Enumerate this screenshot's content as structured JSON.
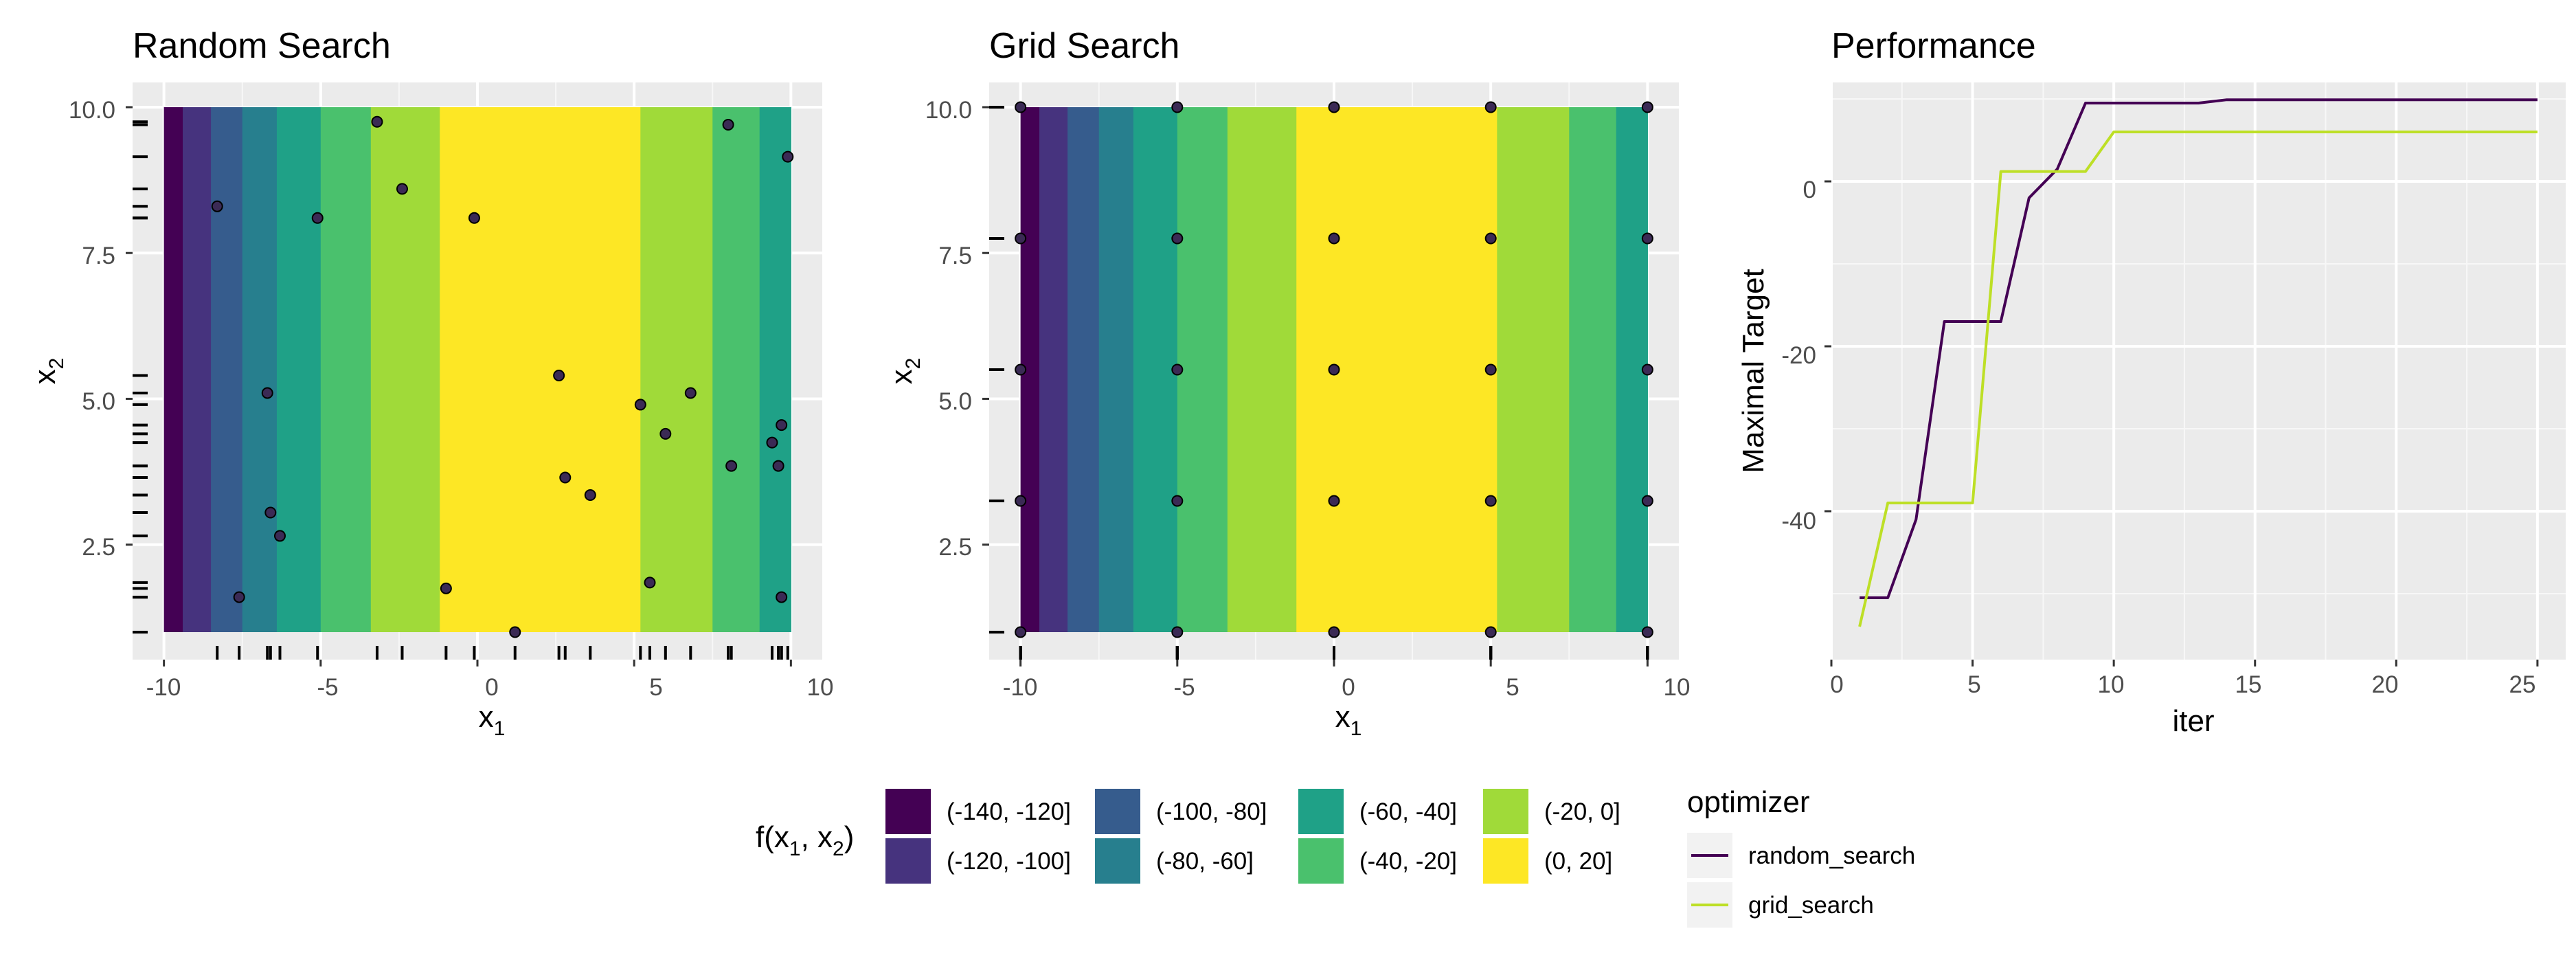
{
  "chart_data": [
    {
      "type": "heatmap",
      "title": "Random Search",
      "xlabel": "x1",
      "ylabel": "x2",
      "xlim": [
        -11,
        11
      ],
      "ylim": [
        1,
        10
      ],
      "x_ticks": [
        "-10",
        "-5",
        "0",
        "5",
        "10"
      ],
      "y_ticks": [
        "2.5",
        "5.0",
        "7.5",
        "10.0"
      ],
      "background_bands": [
        {
          "x_from": -10.0,
          "x_to": -9.4,
          "bin": "(-140, -120]"
        },
        {
          "x_from": -9.4,
          "x_to": -8.5,
          "bin": "(-120, -100]"
        },
        {
          "x_from": -8.5,
          "x_to": -7.5,
          "bin": "(-100, -80]"
        },
        {
          "x_from": -7.5,
          "x_to": -6.4,
          "bin": "(-80, -60]"
        },
        {
          "x_from": -6.4,
          "x_to": -5.0,
          "bin": "(-60, -40]"
        },
        {
          "x_from": -5.0,
          "x_to": -3.4,
          "bin": "(-40, -20]"
        },
        {
          "x_from": -3.4,
          "x_to": -1.2,
          "bin": "(-20, 0]"
        },
        {
          "x_from": -1.2,
          "x_to": 5.2,
          "bin": "(0, 20]"
        },
        {
          "x_from": 5.2,
          "x_to": 7.5,
          "bin": "(-20, 0]"
        },
        {
          "x_from": 7.5,
          "x_to": 9.0,
          "bin": "(-40, -20]"
        },
        {
          "x_from": 9.0,
          "x_to": 10.0,
          "bin": "(-60, -40]"
        }
      ],
      "points": {
        "x": [
          -8.3,
          -5.1,
          -3.2,
          -2.4,
          -0.1,
          8.0,
          9.9,
          2.6,
          5.2,
          6.8,
          6.0,
          9.4,
          9.7,
          8.1,
          9.6,
          2.8,
          3.6,
          5.5,
          9.7,
          -6.7,
          -6.6,
          -6.3,
          -7.6,
          -1.0,
          1.2
        ],
        "y": [
          8.3,
          8.1,
          9.75,
          8.6,
          8.1,
          9.7,
          9.15,
          5.4,
          4.9,
          5.1,
          4.4,
          4.25,
          4.55,
          3.85,
          3.85,
          3.65,
          3.35,
          1.85,
          1.6,
          5.1,
          3.05,
          2.65,
          1.6,
          1.75,
          1.0
        ]
      },
      "rug": true
    },
    {
      "type": "heatmap",
      "title": "Grid Search",
      "xlabel": "x1",
      "ylabel": "x2",
      "xlim": [
        -11,
        11
      ],
      "ylim": [
        1,
        10
      ],
      "x_ticks": [
        "-10",
        "-5",
        "0",
        "5",
        "10"
      ],
      "y_ticks": [
        "2.5",
        "5.0",
        "7.5",
        "10.0"
      ],
      "background_bands": [
        {
          "x_from": -10.0,
          "x_to": -9.4,
          "bin": "(-140, -120]"
        },
        {
          "x_from": -9.4,
          "x_to": -8.5,
          "bin": "(-120, -100]"
        },
        {
          "x_from": -8.5,
          "x_to": -7.5,
          "bin": "(-100, -80]"
        },
        {
          "x_from": -7.5,
          "x_to": -6.4,
          "bin": "(-80, -60]"
        },
        {
          "x_from": -6.4,
          "x_to": -5.0,
          "bin": "(-60, -40]"
        },
        {
          "x_from": -5.0,
          "x_to": -3.4,
          "bin": "(-40, -20]"
        },
        {
          "x_from": -3.4,
          "x_to": -1.2,
          "bin": "(-20, 0]"
        },
        {
          "x_from": -1.2,
          "x_to": 5.2,
          "bin": "(0, 20]"
        },
        {
          "x_from": 5.2,
          "x_to": 7.5,
          "bin": "(-20, 0]"
        },
        {
          "x_from": 7.5,
          "x_to": 9.0,
          "bin": "(-40, -20]"
        },
        {
          "x_from": 9.0,
          "x_to": 10.0,
          "bin": "(-60, -40]"
        }
      ],
      "grid_x": [
        -10,
        -5,
        0,
        5,
        10
      ],
      "grid_y": [
        1.0,
        3.25,
        5.5,
        7.75,
        10.0
      ],
      "rug": true
    },
    {
      "type": "line",
      "title": "Performance",
      "xlabel": "iter",
      "ylabel": "Maximal Target",
      "xlim": [
        0,
        26
      ],
      "ylim": [
        -58,
        12
      ],
      "x_ticks": [
        0,
        5,
        10,
        15,
        20,
        25
      ],
      "y_ticks": [
        -40,
        -20,
        0
      ],
      "legend_title": "optimizer",
      "series": [
        {
          "name": "random_search",
          "color": "#440154",
          "x": [
            1,
            2,
            3,
            4,
            5,
            6,
            7,
            8,
            9,
            10,
            11,
            12,
            13,
            14,
            15,
            16,
            17,
            18,
            19,
            20,
            21,
            22,
            23,
            24,
            25
          ],
          "y": [
            -50.5,
            -50.5,
            -41,
            -17,
            -17,
            -17,
            -2,
            1.5,
            9.5,
            9.5,
            9.5,
            9.5,
            9.5,
            9.9,
            9.9,
            9.9,
            9.9,
            9.9,
            9.9,
            9.9,
            9.9,
            9.9,
            9.9,
            9.9,
            9.9
          ]
        },
        {
          "name": "grid_search",
          "color": "#bddf26",
          "x": [
            1,
            2,
            3,
            4,
            5,
            6,
            7,
            8,
            9,
            10,
            11,
            12,
            13,
            14,
            15,
            16,
            17,
            18,
            19,
            20,
            21,
            22,
            23,
            24,
            25
          ],
          "y": [
            -54,
            -39,
            -39,
            -39,
            -39,
            1.2,
            1.2,
            1.2,
            1.2,
            6,
            6,
            6,
            6,
            6,
            6,
            6,
            6,
            6,
            6,
            6,
            6,
            6,
            6,
            6,
            6
          ]
        }
      ]
    }
  ],
  "fill_legend": {
    "title_main": "f(x",
    "sub1": "1",
    "sep": ", x",
    "sub2": "2",
    "close": ")",
    "entries": [
      {
        "label": "(-140, -120]",
        "color": "#440154"
      },
      {
        "label": "(-120, -100]",
        "color": "#46337e"
      },
      {
        "label": "(-100, -80]",
        "color": "#365c8d"
      },
      {
        "label": "(-80, -60]",
        "color": "#277f8e"
      },
      {
        "label": "(-60, -40]",
        "color": "#1fa187"
      },
      {
        "label": "(-40, -20]",
        "color": "#4ac16d"
      },
      {
        "label": "(-20, 0]",
        "color": "#a0da39"
      },
      {
        "label": "(0, 20]",
        "color": "#fde725"
      }
    ]
  },
  "color_legend": {
    "title": "optimizer",
    "entries": [
      {
        "label": "random_search",
        "color": "#440154"
      },
      {
        "label": "grid_search",
        "color": "#bddf26"
      }
    ]
  },
  "axis_text": {
    "x_main": "x",
    "x_sub": "1",
    "y_main": "x",
    "y_sub": "2"
  }
}
